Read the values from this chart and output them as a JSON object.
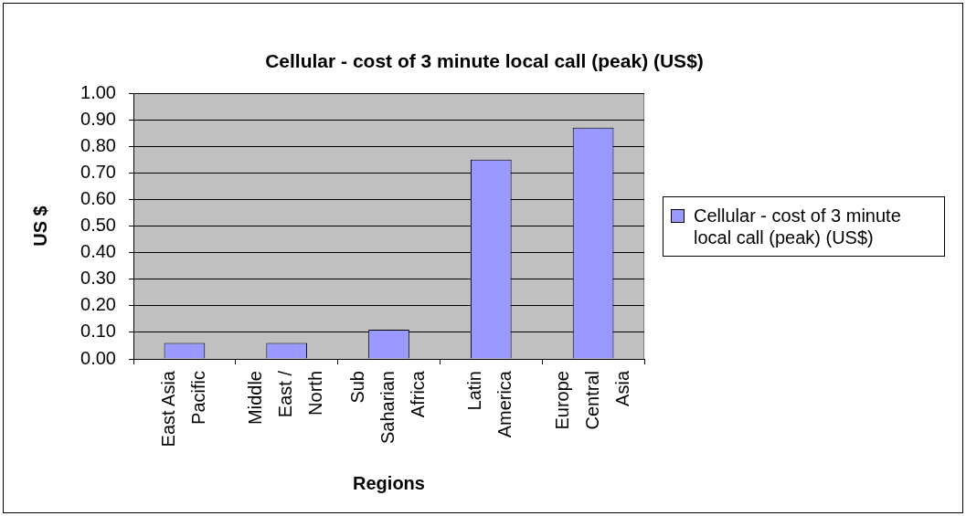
{
  "chart_data": {
    "type": "bar",
    "title": "Cellular - cost of 3 minute local call (peak) (US$)",
    "xlabel": "Regions",
    "ylabel": "US $",
    "categories": [
      "East Asia Pacific",
      "Middle East / North",
      "Sub Saharian Africa",
      "Latin America",
      "Europe Central Asia"
    ],
    "series": [
      {
        "name": "Cellular - cost of 3 minute local call (peak) (US$)",
        "color": "#9999ff",
        "values": [
          0.06,
          0.06,
          0.11,
          0.75,
          0.87
        ]
      }
    ],
    "ylim": [
      0,
      1
    ],
    "yticks": [
      {
        "value": 0,
        "label": "0.00"
      },
      {
        "value": 0.1,
        "label": "0.10"
      },
      {
        "value": 0.2,
        "label": "0.20"
      },
      {
        "value": 0.3,
        "label": "0.30"
      },
      {
        "value": 0.4,
        "label": "0.40"
      },
      {
        "value": 0.5,
        "label": "0.50"
      },
      {
        "value": 0.6,
        "label": "0.60"
      },
      {
        "value": 0.7,
        "label": "0.70"
      },
      {
        "value": 0.8,
        "label": "0.80"
      },
      {
        "value": 0.9,
        "label": "0.90"
      },
      {
        "value": 1,
        "label": "1.00"
      }
    ],
    "grid": "y",
    "legend": "right"
  }
}
